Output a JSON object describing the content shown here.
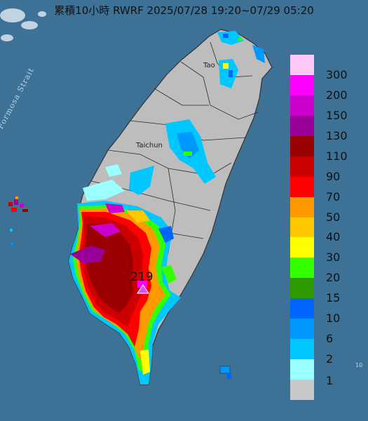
{
  "title": "累積10小時 RWRF 2025/07/28 19:20~07/29 05:20",
  "labels": {
    "strait": "Formosa Strait",
    "taipei": "Tao",
    "taichung": "Taichun",
    "max_value": "219",
    "edge": "10"
  },
  "legend": [
    {
      "label": "300",
      "color": "#ffc8f7"
    },
    {
      "label": "200",
      "color": "#ff00ff"
    },
    {
      "label": "150",
      "color": "#cc00cc"
    },
    {
      "label": "130",
      "color": "#990099"
    },
    {
      "label": "110",
      "color": "#9a0000"
    },
    {
      "label": "90",
      "color": "#cc0000"
    },
    {
      "label": "70",
      "color": "#ff0000"
    },
    {
      "label": "50",
      "color": "#ff9900"
    },
    {
      "label": "40",
      "color": "#ffc800"
    },
    {
      "label": "30",
      "color": "#ffff00"
    },
    {
      "label": "20",
      "color": "#33ff00"
    },
    {
      "label": "15",
      "color": "#2d9b00"
    },
    {
      "label": "10",
      "color": "#0066ff"
    },
    {
      "label": "6",
      "color": "#0099ff"
    },
    {
      "label": "2",
      "color": "#00c8ff"
    },
    {
      "label": "1",
      "color": "#9bffff"
    },
    {
      "label": "",
      "color": "#c8c8c8"
    }
  ]
}
